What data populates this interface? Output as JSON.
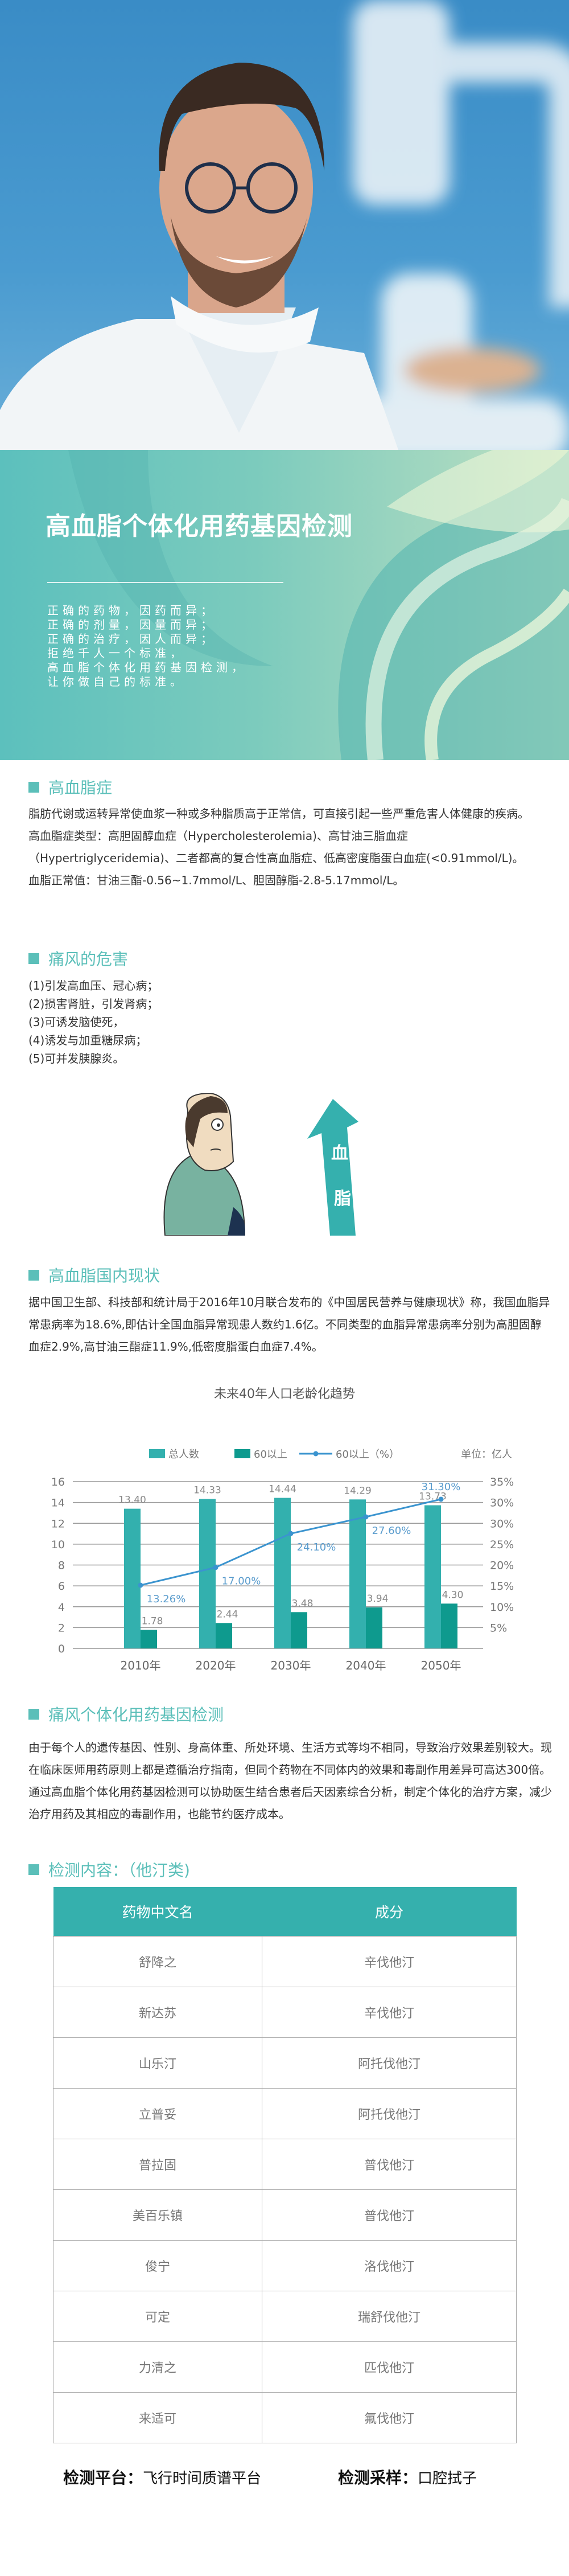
{
  "banner": {
    "title": "高血脂个体化用药基因检测",
    "slogan": [
      "正确的药物，因药而异；",
      "正确的剂量，因量而异；",
      "正确的治疗，因人而异；",
      "拒绝千人一个标准，",
      "高血脂个体化用药基因检测，",
      "让你做自己的标准。"
    ]
  },
  "colors": {
    "accent": "#5bbfb9",
    "bar_total": "#33b0ae",
    "bar_60": "#0e9a8e",
    "line": "#3b94cf",
    "table_header": "#35b0ad"
  },
  "sections": {
    "hyperlipidemia": {
      "title": "高血脂症",
      "paragraphs": [
        "脂肪代谢或运转异常使血浆一种或多种脂质高于正常信，可直接引起一些严重危害人体健康的疾病。",
        "高血脂症类型：高胆固醇血症（Hypercholesterolemia)、高甘油三脂血症（Hypertriglyceridemia)、二者都高的复合性高血脂症、低高密度脂蛋白血症(<0.91mmol/L)。",
        "血脂正常值：甘油三酯-0.56~1.7mmol/L、胆固醇脂-2.8-5.17mmol/L。"
      ]
    },
    "harm": {
      "title": "痛风的危害",
      "items": [
        "(1)引发高血压、冠心病；",
        "(2)损害肾脏，引发肾病；",
        "(3)可诱发脑使死，",
        "(4)诱发与加重糖尿病；",
        "(5)可并发胰腺炎。"
      ],
      "illustration_text": [
        "血",
        "脂"
      ]
    },
    "status": {
      "title": "高血脂国内现状",
      "paragraph": "据中国卫生部、科技部和统计局于2016年10月联合发布的《中国居民营养与健康现状》称，我国血脂异常患病率为18.6%,即估计全国血脂异常现患人数约1.6亿。不同类型的血脂异常患病率分别为高胆固醇血症2.9%,高甘油三酯症11.9%,低密度脂蛋白血症7.4%。"
    },
    "gene": {
      "title": "痛风个体化用药基因检测",
      "paragraphs": [
        "由于每个人的遗传基因、性别、身高体重、所处环境、生活方式等均不相同，导致治疗效果差别较大。现在临床医师用药原则上都是遵循治疗指南，但同个药物在不同体内的效果和毒副作用差异可高达300倍。",
        "通过高血脂个体化用药基因检测可以协助医生结合患者后天因素综合分析，制定个体化的治疗方案，减少治疗用药及其相应的毒副作用，也能节约医疗成本。"
      ]
    },
    "content": {
      "title": "检测内容：（他汀类)",
      "headers": [
        "药物中文名",
        "成分"
      ],
      "rows": [
        [
          "舒降之",
          "辛伐他汀"
        ],
        [
          "新达苏",
          "辛伐他汀"
        ],
        [
          "山乐汀",
          "阿托伐他汀"
        ],
        [
          "立普妥",
          "阿托伐他汀"
        ],
        [
          "普拉固",
          "普伐他汀"
        ],
        [
          "美百乐镇",
          "普伐他汀"
        ],
        [
          "俊宁",
          "洛伐他汀"
        ],
        [
          "可定",
          "瑞舒伐他汀"
        ],
        [
          "力清之",
          "匹伐他汀"
        ],
        [
          "来适可",
          "氟伐他汀"
        ]
      ]
    }
  },
  "footer": {
    "platform_label": "检测平台：",
    "platform_value": "飞行时间质谱平台",
    "sample_label": "检测采样：",
    "sample_value": "口腔拭子"
  },
  "chart_data": {
    "type": "bar",
    "title": "未来40年人口老龄化趋势",
    "unit_label": "单位：亿人",
    "categories": [
      "2010年",
      "2020年",
      "2030年",
      "2040年",
      "2050年"
    ],
    "series": [
      {
        "name": "总人数",
        "type": "bar",
        "values": [
          13.4,
          14.33,
          14.44,
          14.29,
          13.73
        ],
        "labels": [
          "13.40",
          "14.33",
          "14.44",
          "14.29",
          "13.73"
        ]
      },
      {
        "name": "60以上",
        "type": "bar",
        "values": [
          1.78,
          2.44,
          3.48,
          3.94,
          4.3
        ],
        "labels": [
          "1.78",
          "2.44",
          "3.48",
          "3.94",
          "4.30"
        ]
      },
      {
        "name": "60以上（%）",
        "type": "line",
        "axis": "right",
        "values": [
          13.26,
          17.0,
          24.1,
          27.6,
          31.3
        ],
        "labels": [
          "13.26%",
          "17.00%",
          "24.10%",
          "27.60%",
          "31.30%"
        ]
      }
    ],
    "ylim": [
      0,
      16
    ],
    "yticks": [
      "0",
      "2",
      "4",
      "6",
      "8",
      "10",
      "12",
      "14",
      "16"
    ],
    "y2lim": [
      0,
      35
    ],
    "y2ticks": [
      "5%",
      "10%",
      "15%",
      "20%",
      "25%",
      "30%",
      "30%",
      "35%"
    ],
    "grid": true,
    "legend": "top"
  }
}
